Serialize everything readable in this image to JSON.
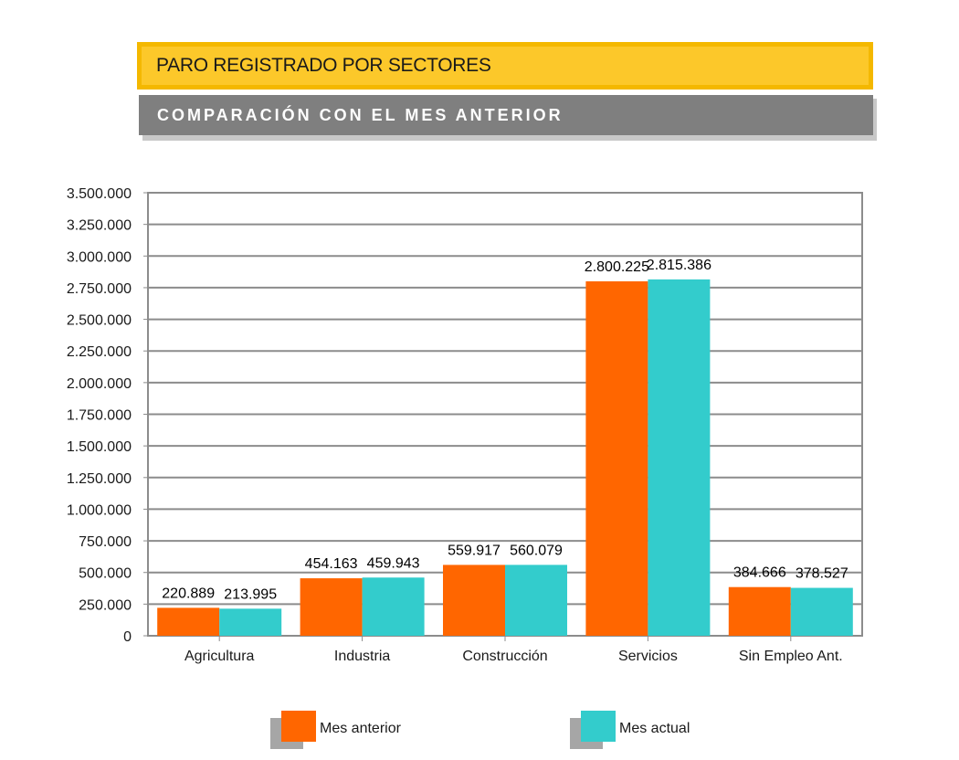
{
  "header": {
    "title": "PARO REGISTRADO POR SECTORES",
    "subtitle": "COMPARACIÓN CON EL MES ANTERIOR"
  },
  "colors": {
    "mes_anterior": "#ff6600",
    "mes_actual": "#33cccc",
    "title_bg": "#fcc82a",
    "title_border": "#f4b800",
    "subtitle_bg": "#7f7f7f"
  },
  "chart_data": {
    "type": "bar",
    "categories": [
      "Agricultura",
      "Industria",
      "Construcción",
      "Servicios",
      "Sin Empleo Ant."
    ],
    "series": [
      {
        "name": "Mes anterior",
        "values": [
          220889,
          454163,
          559917,
          2800225,
          384666
        ],
        "labels": [
          "220.889",
          "454.163",
          "559.917",
          "2.800.225",
          "384.666"
        ]
      },
      {
        "name": "Mes actual",
        "values": [
          213995,
          459943,
          560079,
          2815386,
          378527
        ],
        "labels": [
          "213.995",
          "459.943",
          "560.079",
          "2.815.386",
          "378.527"
        ]
      }
    ],
    "ylim": [
      0,
      3500000
    ],
    "yticks": [
      0,
      250000,
      500000,
      750000,
      1000000,
      1250000,
      1500000,
      1750000,
      2000000,
      2250000,
      2500000,
      2750000,
      3000000,
      3250000,
      3500000
    ],
    "ytick_labels": [
      "0",
      "250.000",
      "500.000",
      "750.000",
      "1.000.000",
      "1.250.000",
      "1.500.000",
      "1.750.000",
      "2.000.000",
      "2.250.000",
      "2.500.000",
      "2.750.000",
      "3.000.000",
      "3.250.000",
      "3.500.000"
    ],
    "grid": true,
    "legend_position": "bottom"
  }
}
